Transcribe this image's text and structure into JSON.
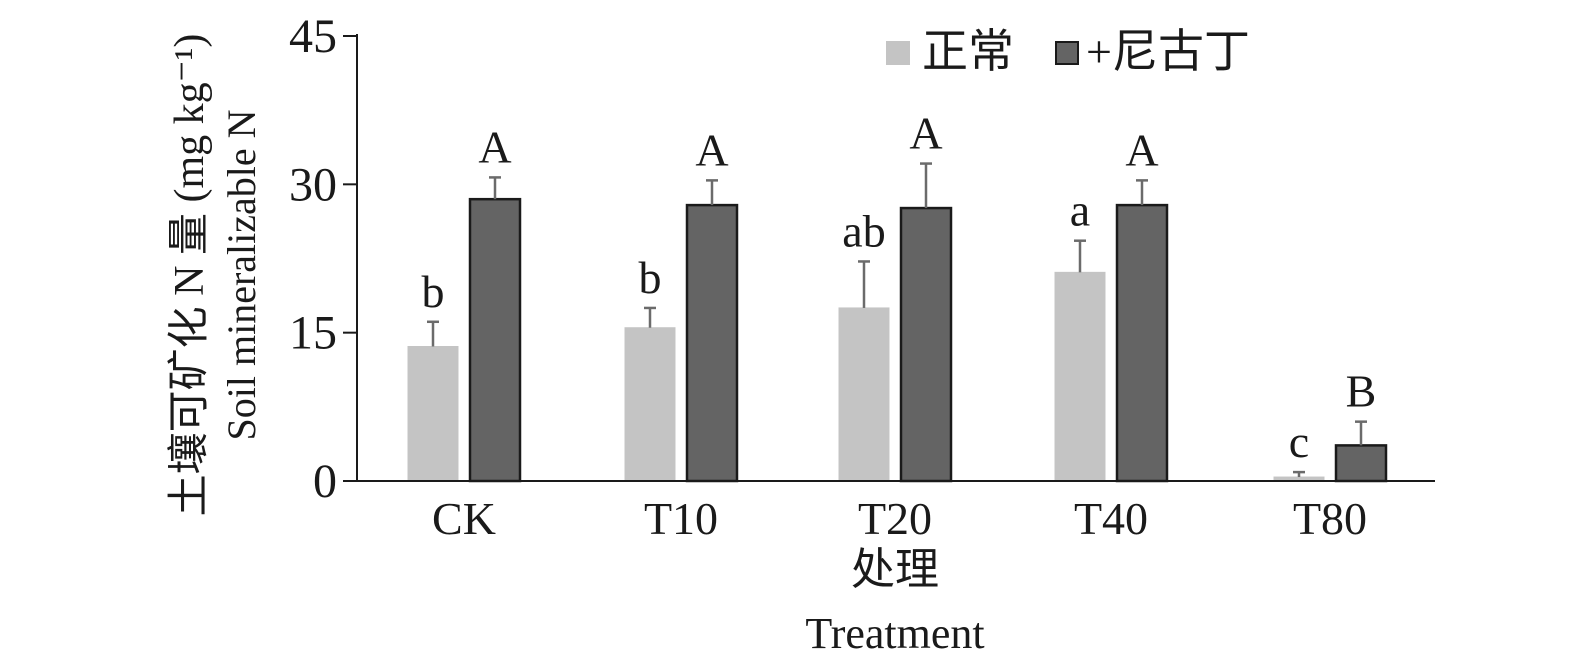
{
  "chart_data": {
    "type": "bar",
    "categories": [
      "CK",
      "T10",
      "T20",
      "T40",
      "T80"
    ],
    "series": [
      {
        "name": "正常",
        "color": "#c4c4c4",
        "values": [
          13.6,
          15.5,
          17.5,
          21.1,
          0.4
        ],
        "errors": [
          2.5,
          2.0,
          4.7,
          3.2,
          0.5
        ],
        "labels": [
          "b",
          "b",
          "ab",
          "a",
          "c"
        ]
      },
      {
        "name": "+尼古丁",
        "color": "#646464",
        "values": [
          28.5,
          27.9,
          27.6,
          27.9,
          3.6
        ],
        "errors": [
          2.2,
          2.5,
          4.5,
          2.5,
          2.4
        ],
        "labels": [
          "A",
          "A",
          "A",
          "A",
          "B"
        ]
      }
    ],
    "ylim": [
      0,
      45
    ],
    "yticks": [
      0,
      15,
      30,
      45
    ],
    "ylabel_cn": "土壤可矿化 N 量 (mg kg⁻¹)",
    "ylabel_en": "Soil mineralizable N",
    "xlabel_cn": "处理",
    "xlabel_en": "Treatment",
    "grid": false,
    "legend_position": "top-right"
  }
}
